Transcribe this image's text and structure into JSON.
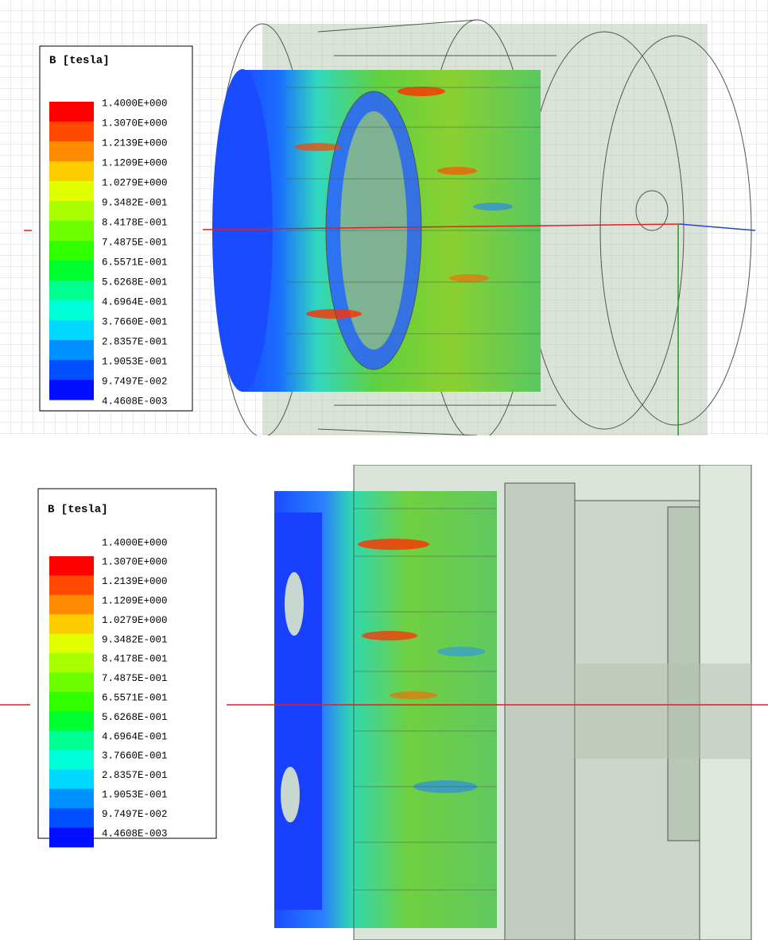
{
  "panels": [
    {
      "legend": {
        "title": "B [tesla]",
        "labels": [
          "1.4000E+000",
          "1.3070E+000",
          "1.2139E+000",
          "1.1209E+000",
          "1.0279E+000",
          "9.3482E-001",
          "8.4178E-001",
          "7.4875E-001",
          "6.5571E-001",
          "5.6268E-001",
          "4.6964E-001",
          "3.7660E-001",
          "2.8357E-001",
          "1.9053E-001",
          "9.7497E-002",
          "4.4608E-003"
        ],
        "colors": [
          "#ff0000",
          "#ff4a00",
          "#ff8c00",
          "#ffcc00",
          "#e0ff00",
          "#a8ff00",
          "#6cff00",
          "#30ff00",
          "#00ff30",
          "#00ff90",
          "#00ffd8",
          "#00d8ff",
          "#0090ff",
          "#0050ff",
          "#0010ff"
        ]
      }
    },
    {
      "legend": {
        "title": "B [tesla]",
        "labels": [
          "1.4000E+000",
          "1.3070E+000",
          "1.2139E+000",
          "1.1209E+000",
          "1.0279E+000",
          "9.3482E-001",
          "8.4178E-001",
          "7.4875E-001",
          "6.5571E-001",
          "5.6268E-001",
          "4.6964E-001",
          "3.7660E-001",
          "2.8357E-001",
          "1.9053E-001",
          "9.7497E-002",
          "4.4608E-003"
        ],
        "colors": [
          "#ff0000",
          "#ff4a00",
          "#ff8c00",
          "#ffcc00",
          "#e0ff00",
          "#a8ff00",
          "#6cff00",
          "#30ff00",
          "#00ff30",
          "#00ff90",
          "#00ffd8",
          "#00d8ff",
          "#0090ff",
          "#0050ff",
          "#0010ff"
        ]
      }
    }
  ]
}
